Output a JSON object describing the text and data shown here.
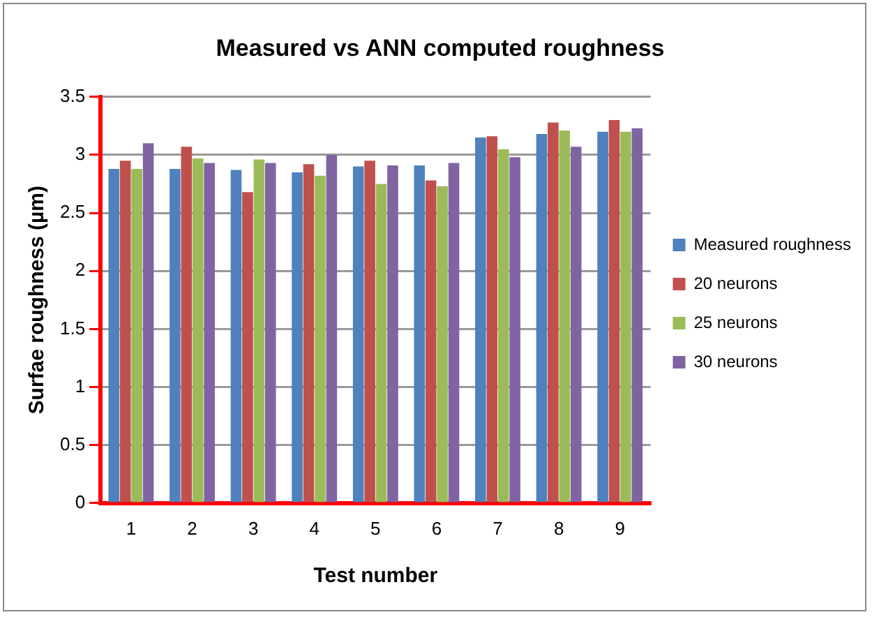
{
  "chart_data": {
    "type": "bar",
    "title": "Measured vs ANN computed roughness",
    "xlabel": "Test number",
    "ylabel": "Surfae roughness (µm)",
    "categories": [
      "1",
      "2",
      "3",
      "4",
      "5",
      "6",
      "7",
      "8",
      "9"
    ],
    "series": [
      {
        "name": "Measured roughness",
        "color": "#4f81bd",
        "values": [
          2.88,
          2.88,
          2.87,
          2.85,
          2.9,
          2.91,
          3.15,
          3.18,
          3.2
        ]
      },
      {
        "name": "20 neurons",
        "color": "#c0504d",
        "values": [
          2.95,
          3.07,
          2.68,
          2.92,
          2.95,
          2.78,
          3.16,
          3.28,
          3.3
        ]
      },
      {
        "name": "25 neurons",
        "color": "#9bbb59",
        "values": [
          2.88,
          2.97,
          2.96,
          2.82,
          2.75,
          2.73,
          3.05,
          3.21,
          3.2
        ]
      },
      {
        "name": "30 neurons",
        "color": "#8064a2",
        "values": [
          3.1,
          2.93,
          2.93,
          3.0,
          2.91,
          2.93,
          2.98,
          3.07,
          3.23
        ]
      }
    ],
    "ylim": [
      0,
      3.5
    ],
    "yticks": [
      0,
      0.5,
      1,
      1.5,
      2,
      2.5,
      3,
      3.5
    ],
    "grid": "y",
    "legend": "right"
  }
}
